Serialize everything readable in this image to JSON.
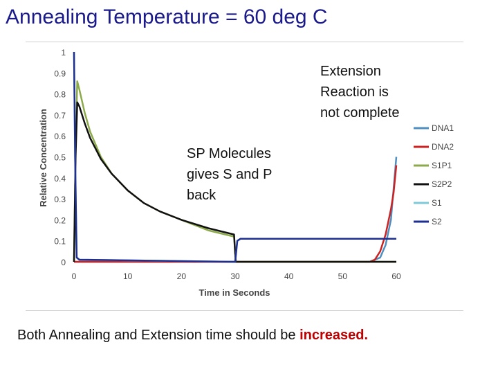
{
  "title": "Annealing Temperature = 60 deg C",
  "annotations": {
    "extension": [
      "Extension",
      "Reaction is",
      "not complete"
    ],
    "sp": [
      "SP Molecules",
      "gives S and P",
      "back"
    ]
  },
  "footer": {
    "text": "Both Annealing and Extension time should be ",
    "highlight": "increased."
  },
  "chart_data": {
    "type": "line",
    "title": "",
    "xlabel": "Time in Seconds",
    "ylabel": "Relative Concentration",
    "xlim": [
      0,
      60
    ],
    "ylim": [
      0,
      1
    ],
    "xticks": [
      "0",
      "10",
      "20",
      "30",
      "40",
      "50",
      "60"
    ],
    "yticks": [
      "0",
      "0.1",
      "0.2",
      "0.3",
      "0.4",
      "0.5",
      "0.6",
      "0.7",
      "0.8",
      "0.9",
      "1"
    ],
    "legend_position": "right",
    "series": [
      {
        "name": "DNA1",
        "color": "#4f8fc0",
        "x": [
          0,
          55,
          57,
          58,
          59,
          59.5,
          60
        ],
        "y": [
          0,
          0,
          0.02,
          0.08,
          0.2,
          0.35,
          0.5
        ]
      },
      {
        "name": "DNA2",
        "color": "#cc2222",
        "x": [
          0,
          55,
          56,
          57,
          58,
          59,
          59.5,
          60
        ],
        "y": [
          0,
          0,
          0.01,
          0.05,
          0.13,
          0.25,
          0.33,
          0.46
        ]
      },
      {
        "name": "S1P1",
        "color": "#8caa4a",
        "x": [
          0,
          0.3,
          0.6,
          1,
          2,
          3,
          5,
          7,
          10,
          13,
          16,
          20,
          25,
          29.8,
          30.1,
          60
        ],
        "y": [
          0,
          0.55,
          0.86,
          0.82,
          0.71,
          0.62,
          0.5,
          0.42,
          0.34,
          0.28,
          0.24,
          0.2,
          0.15,
          0.12,
          0,
          0
        ]
      },
      {
        "name": "S2P2",
        "color": "#111111",
        "x": [
          0,
          0.3,
          0.6,
          1,
          2,
          3,
          5,
          7,
          10,
          13,
          16,
          20,
          25,
          29.8,
          30.1,
          60
        ],
        "y": [
          0,
          0.5,
          0.76,
          0.74,
          0.66,
          0.59,
          0.49,
          0.42,
          0.34,
          0.28,
          0.24,
          0.2,
          0.16,
          0.13,
          0,
          0
        ]
      },
      {
        "name": "S1",
        "color": "#7ec8d8",
        "x": [
          0,
          0.2,
          0.5,
          1,
          29.5,
          30,
          30.4,
          31,
          60
        ],
        "y": [
          1,
          0.5,
          0.02,
          0.01,
          0,
          0,
          0.1,
          0.11,
          0.11
        ]
      },
      {
        "name": "S2",
        "color": "#1f2f8f",
        "x": [
          0,
          0.2,
          0.5,
          1,
          29.5,
          30,
          30.4,
          31,
          60
        ],
        "y": [
          1,
          0.5,
          0.02,
          0.01,
          0,
          0,
          0.1,
          0.11,
          0.11
        ]
      }
    ]
  }
}
